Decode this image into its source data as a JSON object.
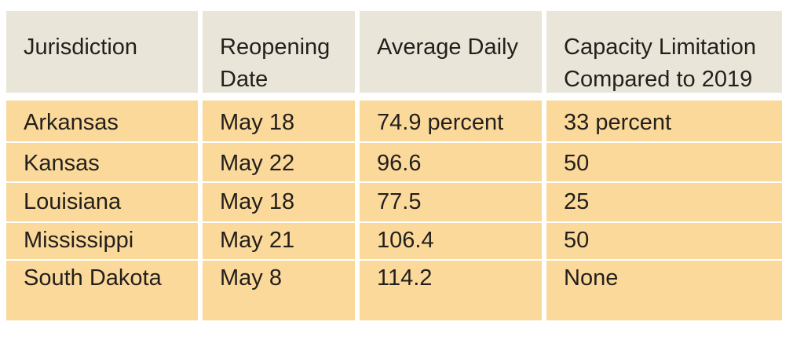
{
  "table": {
    "header": [
      "Jurisdiction",
      "Reopening Date",
      "Average Daily",
      "Capacity Limitation Compared to 2019"
    ],
    "rows": [
      [
        "Arkansas",
        "May 18",
        "74.9 percent",
        "33 percent"
      ],
      [
        "Kansas",
        "May 22",
        "96.6",
        "50"
      ],
      [
        "Louisiana",
        "May 18",
        "77.5",
        "25"
      ],
      [
        "Mississippi",
        "May 21",
        "106.4",
        "50"
      ],
      [
        "South Dakota",
        "May 8",
        "114.2",
        "None"
      ]
    ]
  }
}
